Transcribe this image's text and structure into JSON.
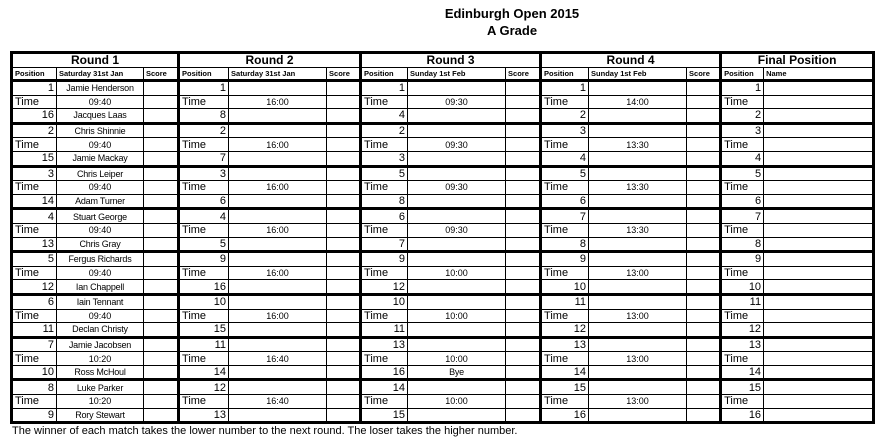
{
  "title": "Edinburgh Open 2015",
  "subtitle": "A Grade",
  "footer_note": "The winner of each match takes the lower number to the next round. The loser takes the higher number.",
  "time_label": "Time",
  "rounds": [
    {
      "title": "Round 1",
      "headers": [
        "Position",
        "Saturday 31st Jan",
        "Score"
      ],
      "matches": [
        {
          "top": "1",
          "top_name": "Jamie Henderson",
          "time": "09:40",
          "bottom": "16",
          "bottom_name": "Jacques Laas"
        },
        {
          "top": "2",
          "top_name": "Chris Shinnie",
          "time": "09:40",
          "bottom": "15",
          "bottom_name": "Jamie Mackay"
        },
        {
          "top": "3",
          "top_name": "Chris Leiper",
          "time": "09:40",
          "bottom": "14",
          "bottom_name": "Adam Turner"
        },
        {
          "top": "4",
          "top_name": "Stuart George",
          "time": "09:40",
          "bottom": "13",
          "bottom_name": "Chris Gray"
        },
        {
          "top": "5",
          "top_name": "Fergus Richards",
          "time": "09:40",
          "bottom": "12",
          "bottom_name": "Ian Chappell"
        },
        {
          "top": "6",
          "top_name": "Iain Tennant",
          "time": "09:40",
          "bottom": "11",
          "bottom_name": "Declan Christy"
        },
        {
          "top": "7",
          "top_name": "Jamie Jacobsen",
          "time": "10:20",
          "bottom": "10",
          "bottom_name": "Ross McHoul"
        },
        {
          "top": "8",
          "top_name": "Luke Parker",
          "time": "10:20",
          "bottom": "9",
          "bottom_name": "Rory Stewart"
        }
      ]
    },
    {
      "title": "Round 2",
      "headers": [
        "Position",
        "Saturday 31st Jan",
        "Score"
      ],
      "matches": [
        {
          "top": "1",
          "time": "16:00",
          "bottom": "8"
        },
        {
          "top": "2",
          "time": "16:00",
          "bottom": "7"
        },
        {
          "top": "3",
          "time": "16:00",
          "bottom": "6"
        },
        {
          "top": "4",
          "time": "16:00",
          "bottom": "5"
        },
        {
          "top": "9",
          "time": "16:00",
          "bottom": "16"
        },
        {
          "top": "10",
          "time": "16:00",
          "bottom": "15"
        },
        {
          "top": "11",
          "time": "16:40",
          "bottom": "14"
        },
        {
          "top": "12",
          "time": "16:40",
          "bottom": "13"
        }
      ]
    },
    {
      "title": "Round 3",
      "headers": [
        "Position",
        "Sunday 1st Feb",
        "Score"
      ],
      "matches": [
        {
          "top": "1",
          "time": "09:30",
          "bottom": "4"
        },
        {
          "top": "2",
          "time": "09:30",
          "bottom": "3"
        },
        {
          "top": "5",
          "time": "09:30",
          "bottom": "8"
        },
        {
          "top": "6",
          "time": "09:30",
          "bottom": "7"
        },
        {
          "top": "9",
          "time": "10:00",
          "bottom": "12"
        },
        {
          "top": "10",
          "time": "10:00",
          "bottom": "11"
        },
        {
          "top": "13",
          "time": "10:00",
          "bottom": "16",
          "bottom_name": "Bye"
        },
        {
          "top": "14",
          "time": "10:00",
          "bottom": "15"
        }
      ]
    },
    {
      "title": "Round 4",
      "headers": [
        "Position",
        "Sunday 1st Feb",
        "Score"
      ],
      "matches": [
        {
          "top": "1",
          "time": "14:00",
          "bottom": "2"
        },
        {
          "top": "3",
          "time": "13:30",
          "bottom": "4"
        },
        {
          "top": "5",
          "time": "13:30",
          "bottom": "6"
        },
        {
          "top": "7",
          "time": "13:30",
          "bottom": "8"
        },
        {
          "top": "9",
          "time": "13:00",
          "bottom": "10"
        },
        {
          "top": "11",
          "time": "13:00",
          "bottom": "12"
        },
        {
          "top": "13",
          "time": "13:00",
          "bottom": "14"
        },
        {
          "top": "15",
          "time": "13:00",
          "bottom": "16"
        }
      ]
    }
  ],
  "final": {
    "title": "Final Position",
    "headers": [
      "Position",
      "Name"
    ],
    "pairs": [
      {
        "top": "1",
        "bottom": "2"
      },
      {
        "top": "3",
        "bottom": "4"
      },
      {
        "top": "5",
        "bottom": "6"
      },
      {
        "top": "7",
        "bottom": "8"
      },
      {
        "top": "9",
        "bottom": "10"
      },
      {
        "top": "11",
        "bottom": "12"
      },
      {
        "top": "13",
        "bottom": "14"
      },
      {
        "top": "15",
        "bottom": "16"
      }
    ]
  }
}
